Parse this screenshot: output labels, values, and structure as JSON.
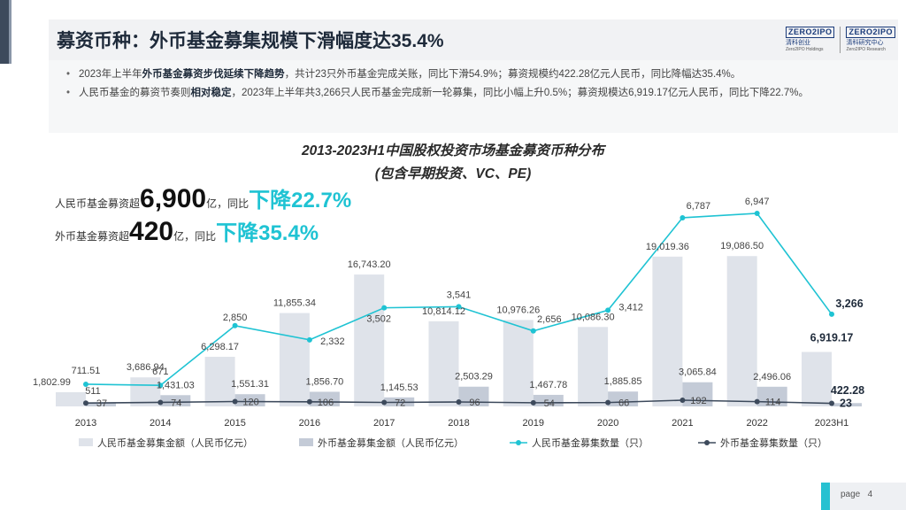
{
  "page_title": "募资币种：外币基金募集规模下滑幅度达35.4%",
  "logos": [
    {
      "main": "ZERO2IPO",
      "sub": "清科创业",
      "sub2": "Zero2IPO Holdings"
    },
    {
      "main": "ZERO2IPO",
      "sub": "清科研究中心",
      "sub2": "Zero2IPO Research"
    }
  ],
  "bullets": [
    {
      "pre": "2023年上半年",
      "bold": "外币基金募资步伐延续下降趋势",
      "post": "，共计23只外币基金完成关账，同比下滑54.9%；募资规模约422.28亿元人民币，同比降幅达35.4%。"
    },
    {
      "pre": "人民币基金的募资节奏则",
      "bold": "相对稳定",
      "post": "，2023年上半年共3,266只人民币基金完成新一轮募集，同比小幅上升0.5%；募资规模达6,919.17亿元人民币，同比下降22.7%。"
    }
  ],
  "callouts": [
    {
      "pre": "人民币基金募资超",
      "big": "6,900",
      "mid": "亿，同比",
      "cyan": "下降22.7%"
    },
    {
      "pre": "外币基金募资超",
      "big": "420",
      "mid": "亿，同比",
      "cyan": "下降35.4%"
    }
  ],
  "chart_data": {
    "type": "bar",
    "title": "2013-2023H1中国股权投资市场基金募资币种分布",
    "subtitle": "(包含早期投资、VC、PE)",
    "categories": [
      "2013",
      "2014",
      "2015",
      "2016",
      "2017",
      "2018",
      "2019",
      "2020",
      "2021",
      "2022",
      "2023H1"
    ],
    "series": [
      {
        "name": "人民币基金募集金额（人民币亿元）",
        "kind": "bar",
        "color": "#dfe3ea",
        "values": [
          1802.99,
          3686.94,
          6298.17,
          11855.34,
          16743.2,
          10814.12,
          10976.26,
          10086.3,
          19019.36,
          19086.5,
          6919.17
        ],
        "labels": [
          "1,802.99",
          "3,686.94",
          "6,298.17",
          "11,855.34",
          "16,743.20",
          "10,814.12",
          "10,976.26",
          "10,086.30",
          "19,019.36",
          "19,086.50",
          "6,919.17"
        ]
      },
      {
        "name": "外币基金募集金额（人民币亿元）",
        "kind": "bar",
        "color": "#c4cbd7",
        "values": [
          511,
          1431.03,
          1551.31,
          1856.7,
          1145.53,
          2503.29,
          1467.78,
          1885.85,
          3065.84,
          2496.06,
          422.28
        ],
        "labels": [
          "511",
          "1,431.03",
          "1,551.31",
          "1,856.70",
          "1,145.53",
          "2,503.29",
          "1,467.78",
          "1,885.85",
          "3,065.84",
          "2,496.06",
          "422.28"
        ]
      },
      {
        "name": "人民币基金募集数量（只）",
        "kind": "line",
        "color": "#1fc3d3",
        "values": [
          711.51,
          671,
          2850,
          2332,
          3502,
          3541,
          2656,
          3412,
          6787,
          6947,
          3266
        ],
        "labels": [
          "711.51",
          "671",
          "2,850",
          "2,332",
          "3,502",
          "3,541",
          "2,656",
          "3,412",
          "6,787",
          "6,947",
          "3,266"
        ]
      },
      {
        "name": "外币基金募集数量（只）",
        "kind": "line",
        "color": "#3d4a5c",
        "values": [
          37,
          74,
          120,
          106,
          72,
          96,
          54,
          66,
          192,
          114,
          23
        ],
        "labels": [
          "37",
          "74",
          "120",
          "106",
          "72",
          "96",
          "54",
          "66",
          "192",
          "114",
          "23"
        ]
      }
    ],
    "legend_position": "bottom",
    "grid": false
  },
  "footer": {
    "page_label": "page",
    "page_number": "4"
  }
}
